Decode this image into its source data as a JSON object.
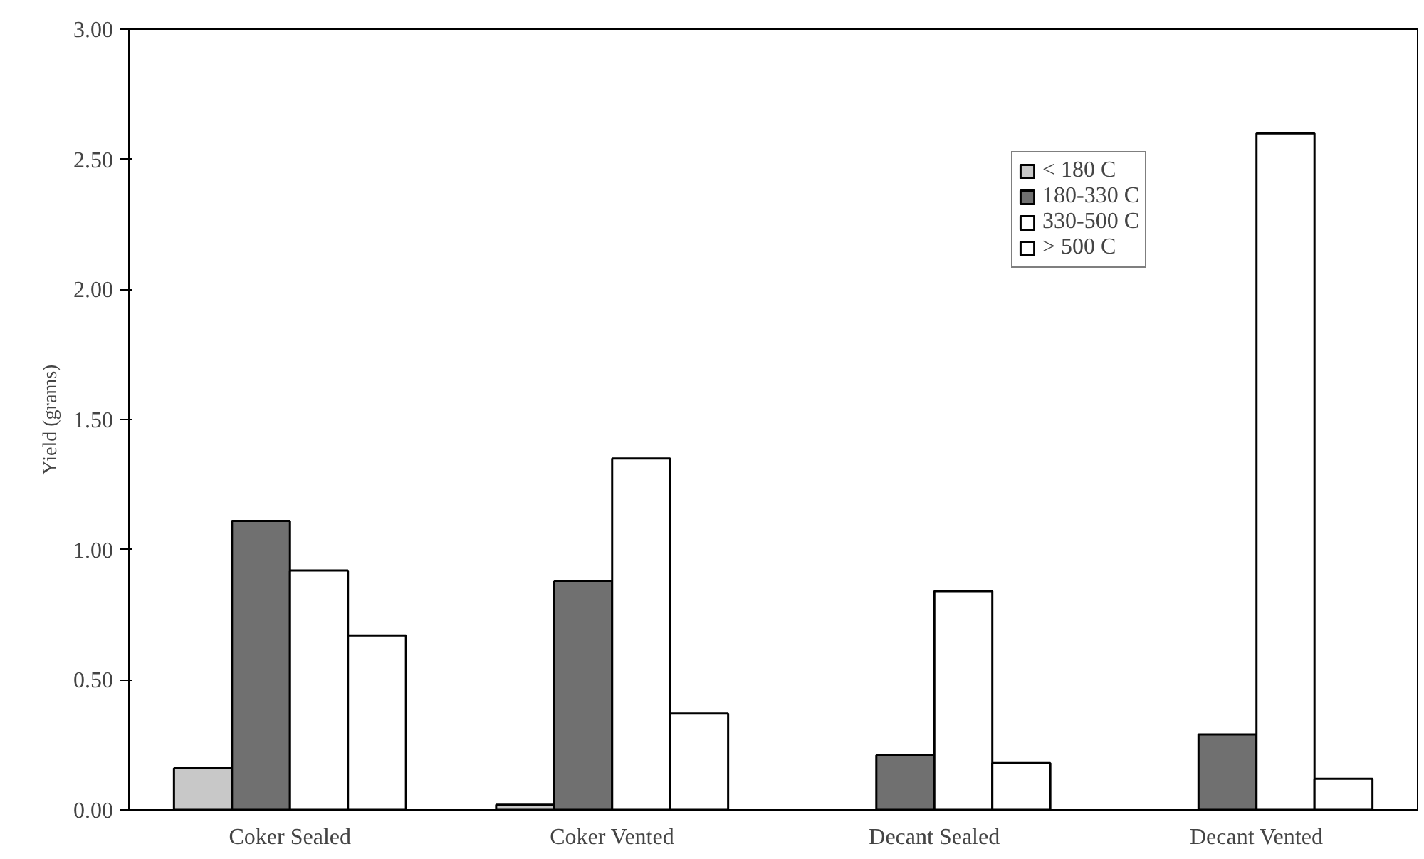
{
  "chart_data": {
    "type": "bar",
    "ylabel": "Yield (grams)",
    "categories": [
      "Coker Sealed",
      "Coker Vented",
      "Decant Sealed",
      "Decant Vented"
    ],
    "series": [
      {
        "name": "< 180 C",
        "color": "#c8c8c8",
        "values": [
          0.16,
          0.02,
          null,
          null
        ]
      },
      {
        "name": "180-330 C",
        "color": "#707070",
        "values": [
          1.11,
          0.88,
          0.21,
          0.29
        ]
      },
      {
        "name": "330-500 C",
        "color": "#ffffff",
        "values": [
          0.92,
          1.35,
          0.84,
          2.6
        ]
      },
      {
        "name": "> 500 C",
        "color": "#ffffff",
        "values": [
          0.67,
          0.37,
          0.18,
          0.12
        ]
      }
    ],
    "ylim": [
      0,
      3
    ],
    "yticks": [
      {
        "value": 0,
        "label": "0.00"
      },
      {
        "value": 0.5,
        "label": "0.50"
      },
      {
        "value": 1,
        "label": "1.00"
      },
      {
        "value": 1.5,
        "label": "1.50"
      },
      {
        "value": 2,
        "label": "2.00"
      },
      {
        "value": 2.5,
        "label": "2.50"
      },
      {
        "value": 3,
        "label": "3.00"
      }
    ],
    "grid": false,
    "legend": "top right"
  }
}
